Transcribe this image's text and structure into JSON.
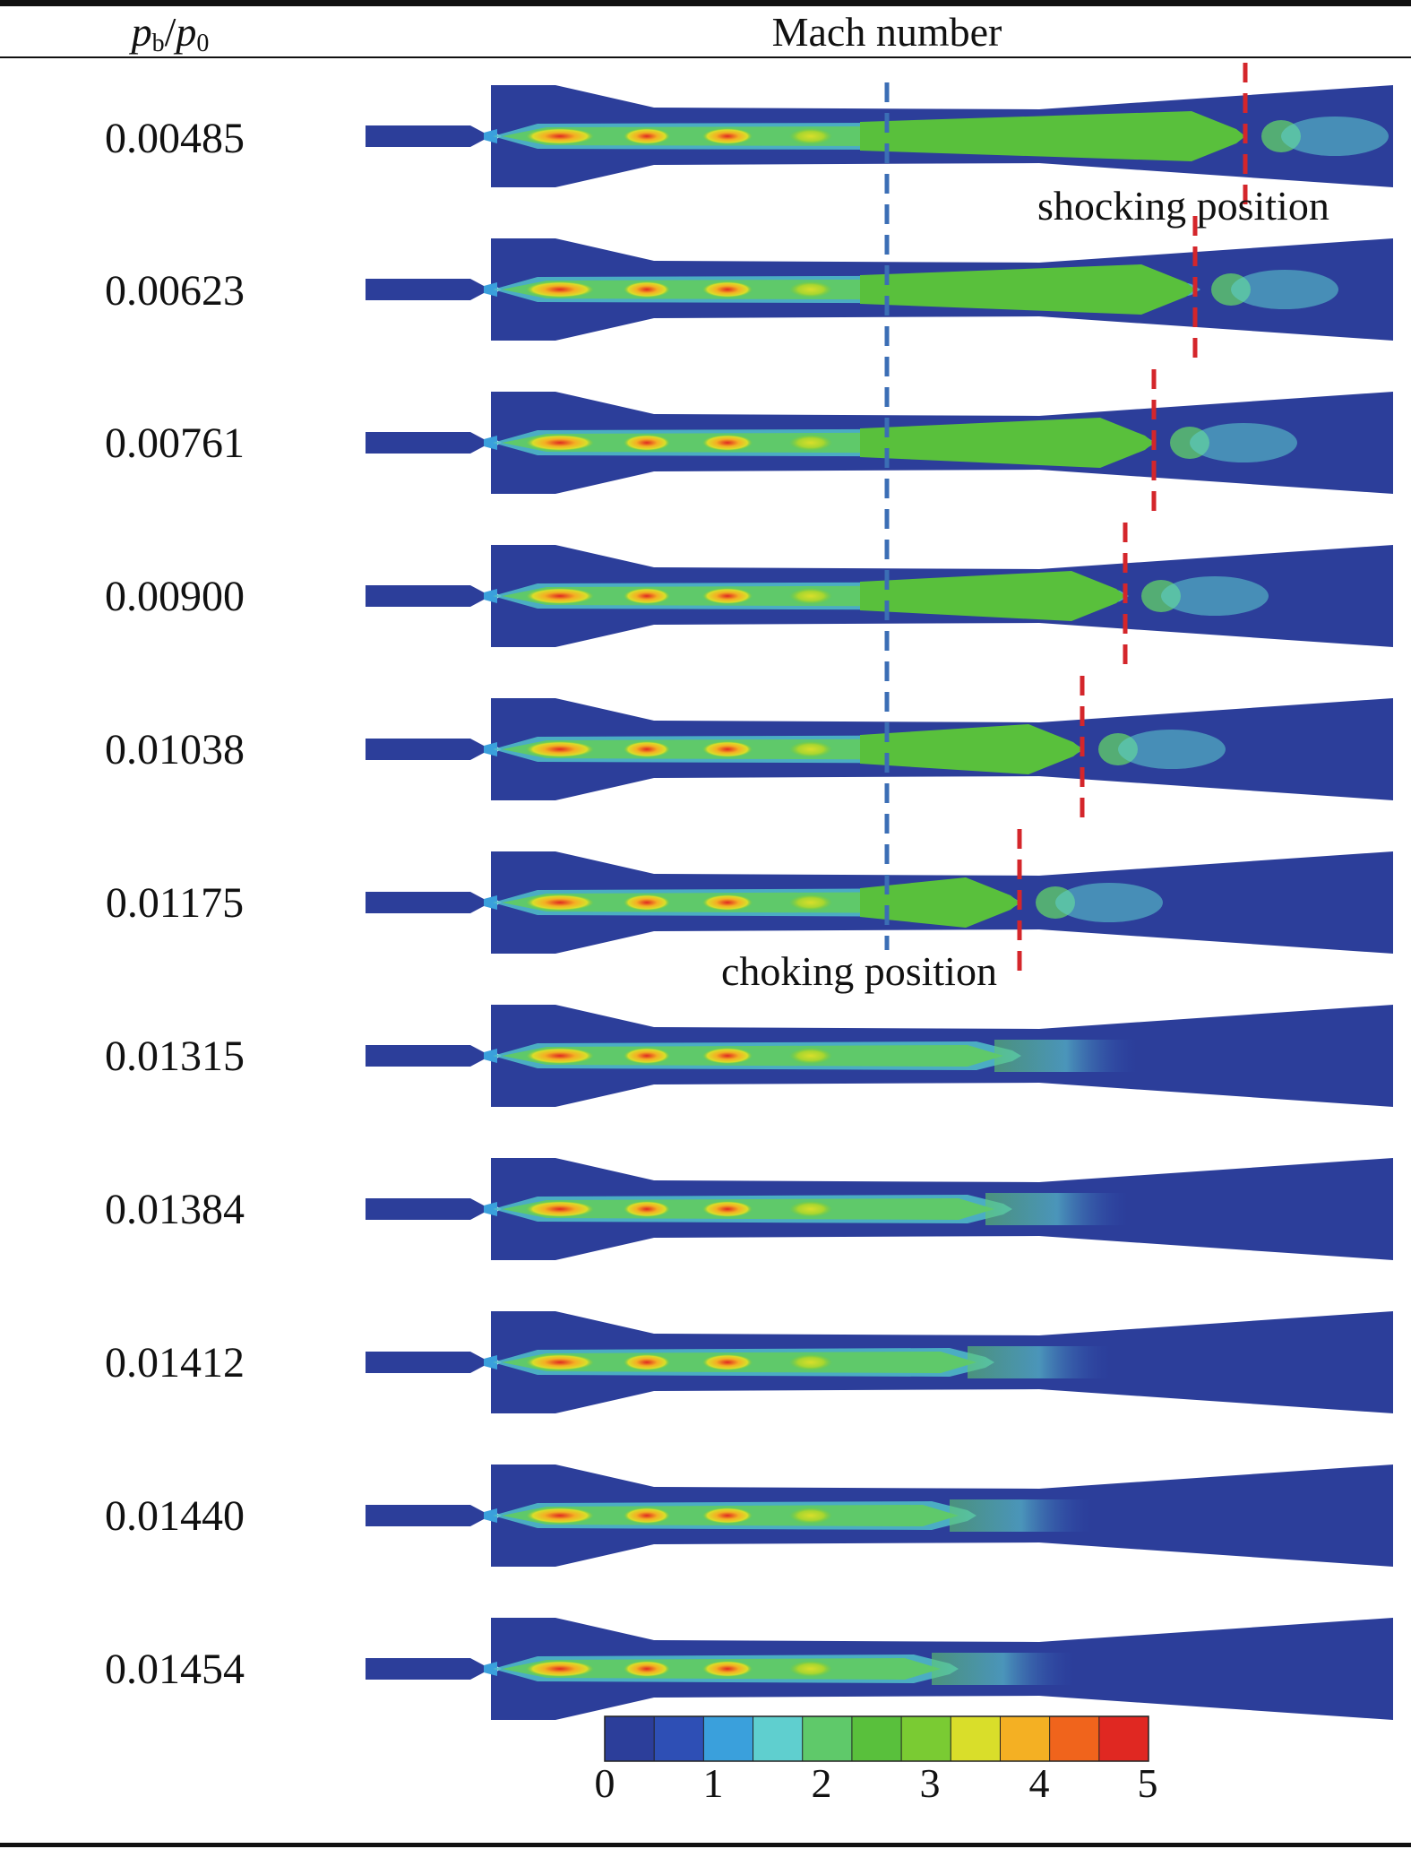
{
  "header": {
    "ratio_label": {
      "p1": "p",
      "sub1": "b",
      "slash": "/",
      "p2": "p",
      "sub2": "0"
    },
    "title": "Mach number"
  },
  "rows": [
    {
      "ratio": "0.00485",
      "shock_x": 1390,
      "jet_end": 1380
    },
    {
      "ratio": "0.00623",
      "shock_x": 1334,
      "jet_end": 1330
    },
    {
      "ratio": "0.00761",
      "shock_x": 1288,
      "jet_end": 1280
    },
    {
      "ratio": "0.00900",
      "shock_x": 1256,
      "jet_end": 1250
    },
    {
      "ratio": "0.01038",
      "shock_x": 1208,
      "jet_end": 1200
    },
    {
      "ratio": "0.01175",
      "shock_x": 1138,
      "jet_end": 1130
    },
    {
      "ratio": "0.01315",
      "jet_end": 1130
    },
    {
      "ratio": "0.01384",
      "jet_end": 1120
    },
    {
      "ratio": "0.01412",
      "jet_end": 1100
    },
    {
      "ratio": "0.01440",
      "jet_end": 1080
    },
    {
      "ratio": "0.01454",
      "jet_end": 1060
    }
  ],
  "annotations": {
    "shocking": "shocking position",
    "choking": "choking position"
  },
  "colorbar": {
    "ticks": [
      "0",
      "1",
      "2",
      "3",
      "4",
      "5"
    ],
    "colors": [
      "#2c3e9a",
      "#2e4fb5",
      "#3aa0dc",
      "#5fcfcf",
      "#5fc96a",
      "#59c03c",
      "#7acb33",
      "#d9de2a",
      "#f4b023",
      "#f0641c",
      "#e02822"
    ]
  },
  "markers": {
    "choke_color": "#3b6eb5",
    "shock_color": "#d4262b"
  }
}
